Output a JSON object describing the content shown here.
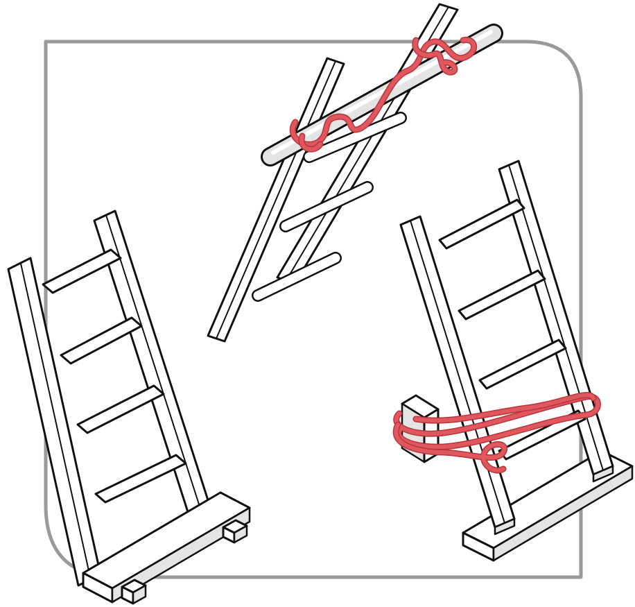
{
  "colors": {
    "background": "#ffffff",
    "frame": "#9a9a9a",
    "ink": "#111111",
    "shading": "#e4e4e4",
    "rope": "#e0585f",
    "rope_dark": "#b8343b"
  },
  "illustrations": [
    {
      "id": "ladder-on-sole-board",
      "icon": "ladder-icon"
    },
    {
      "id": "ladder-lashed-to-pole",
      "icon": "ladder-icon"
    },
    {
      "id": "ladder-tied-to-anchor",
      "icon": "ladder-icon"
    }
  ]
}
